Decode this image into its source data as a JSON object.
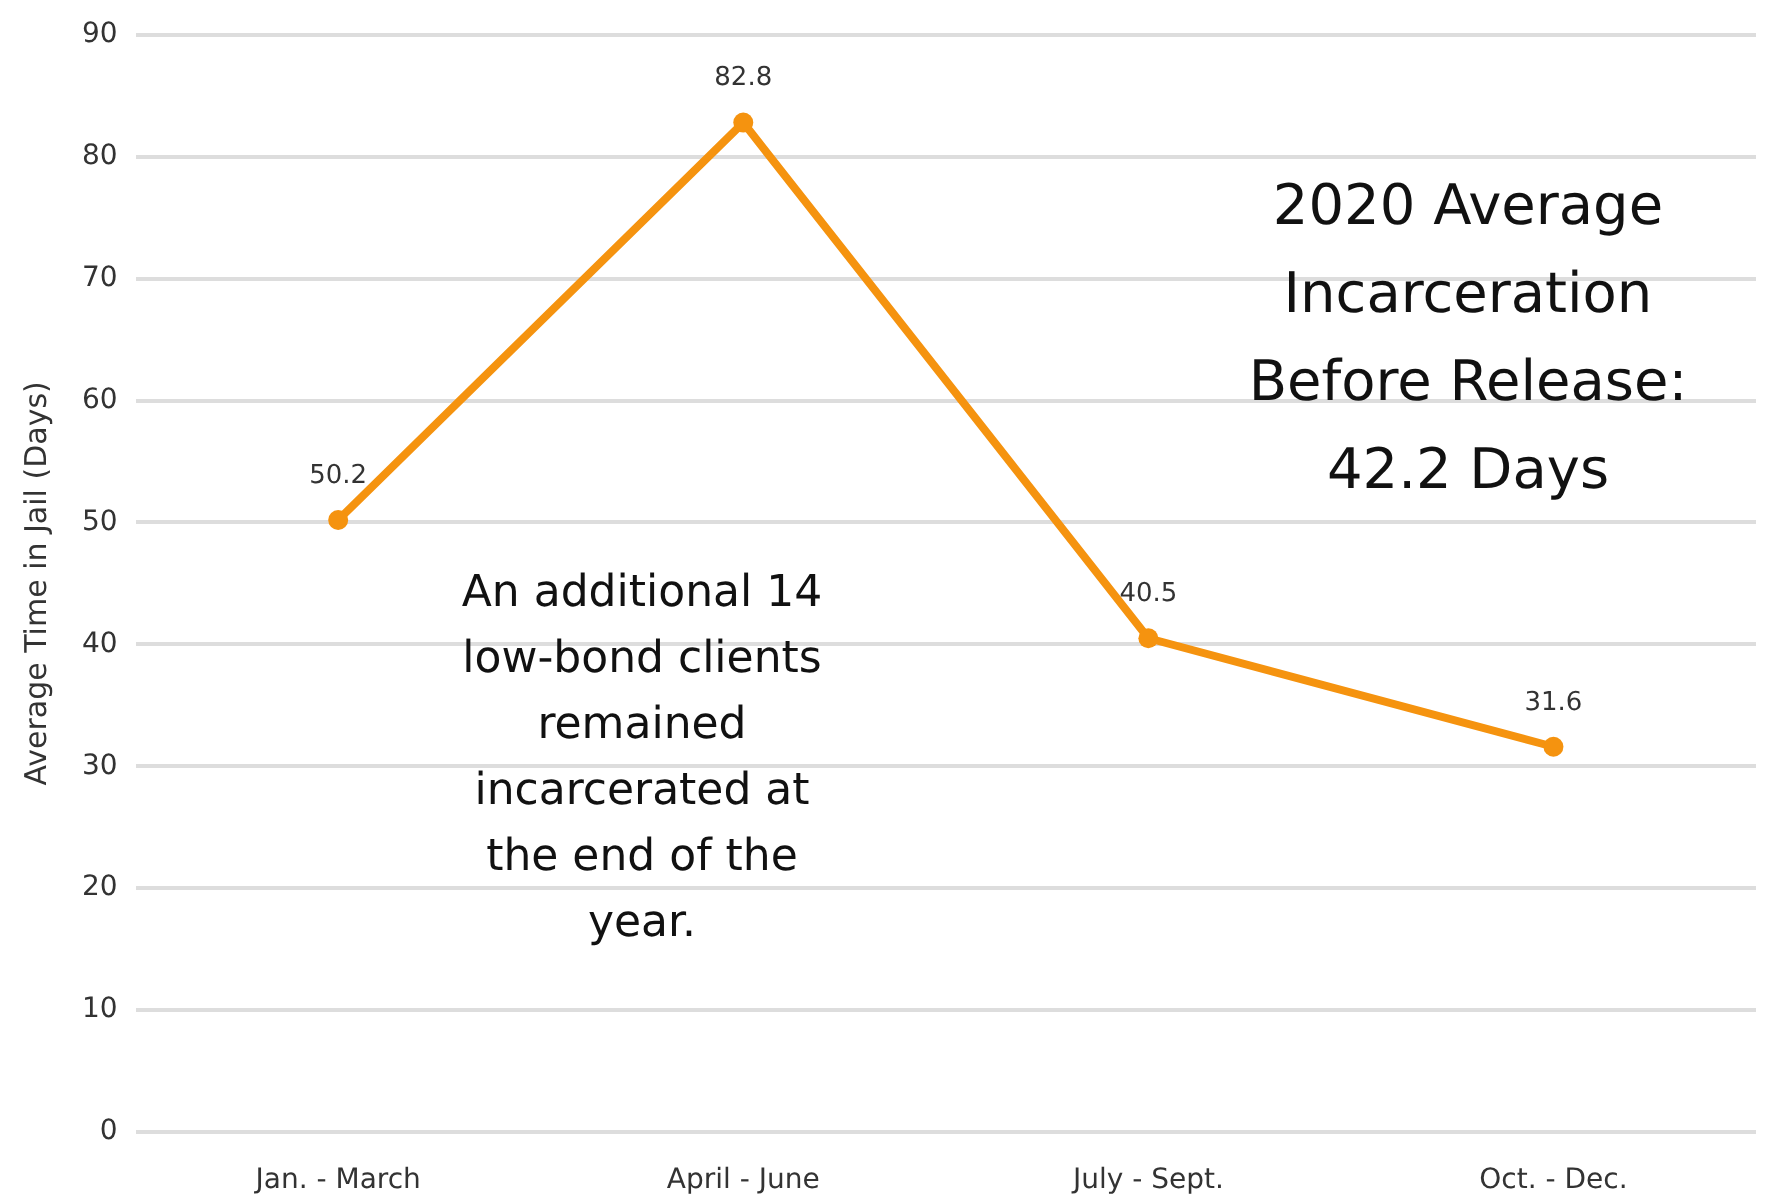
{
  "chart_data": {
    "type": "line",
    "categories": [
      "Jan. - March",
      "April - June",
      "July - Sept.",
      "Oct. - Dec."
    ],
    "values": [
      50.2,
      82.8,
      40.5,
      31.6
    ],
    "color": "#f5930f",
    "ylabel": "Average Time in Jail (Days)",
    "ylim": [
      0,
      90
    ],
    "yticks": [
      0,
      10,
      20,
      30,
      40,
      50,
      60,
      70,
      80,
      90
    ],
    "grid": "y",
    "marker": "circle",
    "line_style": "solid",
    "data_labels": true,
    "annotations": [
      "An additional 14 low-bond clients remained incarcerated at the end of the year.",
      "2020 Average Incarceration Before Release: 42.2 Days"
    ]
  }
}
